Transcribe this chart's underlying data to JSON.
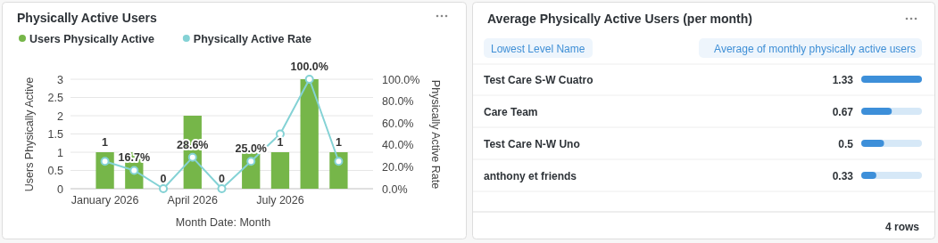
{
  "chart_data": [
    {
      "type": "bar",
      "title": "Physically Active Users",
      "categories": [
        "January 2026",
        null,
        null,
        "April 2026",
        null,
        null,
        "July 2026",
        null,
        null
      ],
      "series": [
        {
          "name": "Users Physically Active",
          "type": "bar",
          "color": "#76b649",
          "values": [
            1,
            1,
            0,
            2,
            0,
            1,
            1,
            3,
            1
          ],
          "value_labels": [
            "1",
            null,
            "0",
            null,
            "0",
            null,
            "1",
            null,
            "1"
          ]
        },
        {
          "name": "Physically Active Rate",
          "type": "line",
          "axis": "y2",
          "color": "#84d2d5",
          "values": [
            25,
            16.7,
            0,
            28.6,
            0,
            25,
            50,
            100,
            25
          ],
          "value_labels": [
            null,
            "16.7%",
            null,
            "28.6%",
            null,
            "25.0%",
            null,
            "100.0%",
            null
          ]
        }
      ],
      "xlabel": "Month Date: Month",
      "ylabel": "Users Physically Active",
      "y2label": "Physically Active Rate",
      "ylim": [
        0,
        3
      ],
      "yticks": [
        0,
        0.5,
        1,
        1.5,
        2,
        2.5,
        3
      ],
      "y2lim": [
        0,
        100
      ],
      "y2ticks": [
        {
          "value": 0,
          "label": "0.0%"
        },
        {
          "value": 20,
          "label": "20.0%"
        },
        {
          "value": 40,
          "label": "40.0%"
        },
        {
          "value": 60,
          "label": "60.0%"
        },
        {
          "value": 80,
          "label": "80.0%"
        },
        {
          "value": 100,
          "label": "100.0%"
        }
      ],
      "grid": "y",
      "legend": "top left",
      "marker": "circle"
    },
    {
      "type": "bar",
      "orientation": "horizontal",
      "title": "Average Physically Active Users (per month)",
      "categories": [
        "Test Care S-W Cuatro",
        "Care Team",
        "Test Care N-W Uno",
        "anthony et friends"
      ],
      "values": [
        1.33,
        0.67,
        0.5,
        0.33
      ],
      "color": "#3d8fd9",
      "data_labels": true,
      "ylabel": "Lowest Level Name",
      "xlabel": "Average of monthly physically active users",
      "annotations": [
        "4 rows"
      ]
    }
  ]
}
